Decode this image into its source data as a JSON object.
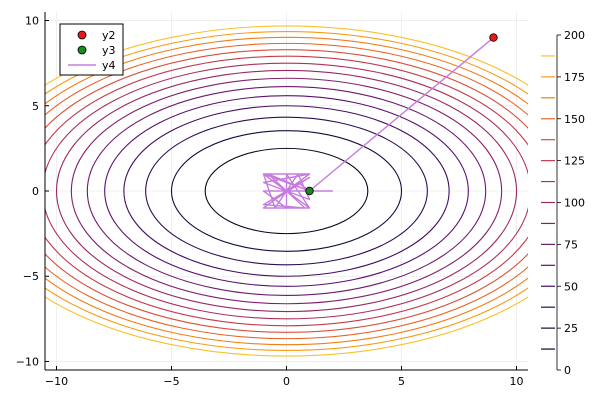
{
  "chart_data": {
    "type": "contour",
    "title": "",
    "xlabel": "",
    "ylabel": "",
    "xlim": [
      -10.5,
      10.5
    ],
    "ylim": [
      -10.5,
      10.5
    ],
    "x_ticks": [
      -10,
      -5,
      0,
      5,
      10
    ],
    "y_ticks": [
      -10,
      -5,
      0,
      5,
      10
    ],
    "grid": true,
    "contour": {
      "function": "x^2 + 2*y^2",
      "levels": [
        12.5,
        25,
        37.5,
        50,
        62.5,
        75,
        87.5,
        100,
        112.5,
        125,
        137.5,
        150,
        162.5,
        175,
        187.5
      ],
      "colorbar": {
        "min": 0,
        "max": 200,
        "ticks": [
          0,
          25,
          50,
          75,
          100,
          125,
          150,
          175,
          200
        ]
      }
    },
    "legend": {
      "position": "top-left",
      "entries": [
        {
          "label": "y2",
          "marker": "circle",
          "color": "#e31a1c"
        },
        {
          "label": "y3",
          "marker": "circle",
          "color": "#1a8a1a"
        },
        {
          "label": "y4",
          "marker": "line",
          "color": "#c77be0"
        }
      ]
    },
    "series": [
      {
        "name": "y2",
        "kind": "scatter",
        "color": "#e31a1c",
        "points": [
          [
            9,
            9
          ]
        ]
      },
      {
        "name": "y3",
        "kind": "scatter",
        "color": "#1a8a1a",
        "points": [
          [
            1,
            0
          ]
        ]
      },
      {
        "name": "y4",
        "kind": "line",
        "color": "#c77be0",
        "points": [
          [
            9,
            9
          ],
          [
            1,
            0
          ],
          [
            2,
            0
          ],
          [
            1,
            0
          ],
          [
            -1,
            1
          ],
          [
            1,
            -1
          ],
          [
            -1,
            -1
          ],
          [
            1,
            1
          ],
          [
            -1,
            0.5
          ],
          [
            1,
            -0.5
          ],
          [
            0.5,
            1
          ],
          [
            -0.5,
            -1
          ],
          [
            -1,
            1
          ],
          [
            1,
            1
          ],
          [
            -1,
            -1
          ],
          [
            1,
            -1
          ],
          [
            0,
            1
          ],
          [
            0,
            -1
          ],
          [
            -1,
            0
          ],
          [
            1,
            0
          ],
          [
            0.5,
            0.5
          ],
          [
            -0.5,
            -0.5
          ],
          [
            1,
            0.8
          ],
          [
            -1,
            -0.8
          ],
          [
            0.8,
            -1
          ],
          [
            -0.8,
            1
          ],
          [
            1,
            0
          ]
        ]
      }
    ]
  }
}
